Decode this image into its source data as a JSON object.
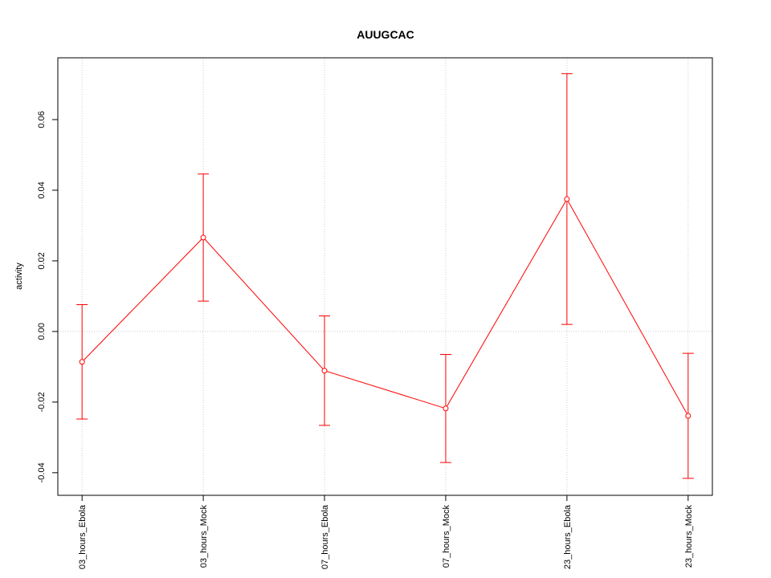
{
  "chart_data": {
    "type": "line",
    "title": "AUUGCAC",
    "ylabel": "activity",
    "categories": [
      "03_hours_Ebola",
      "03_hours_Mock",
      "07_hours_Ebola",
      "07_hours_Mock",
      "23_hours_Ebola",
      "23_hours_Mock"
    ],
    "series": [
      {
        "color": "#ff0000",
        "values": [
          -0.0086,
          0.0266,
          -0.0111,
          -0.0218,
          0.0375,
          -0.0239
        ],
        "errors": [
          0.0162,
          0.018,
          0.0155,
          0.0153,
          0.0355,
          0.0177
        ]
      }
    ],
    "ylim": [
      -0.0464,
      0.0775
    ],
    "yticks": [
      -0.04,
      -0.02,
      {
        "value": 0,
        "label": "0.00"
      },
      0.02,
      0.04,
      0.06
    ],
    "hline": 0,
    "grid": true
  }
}
